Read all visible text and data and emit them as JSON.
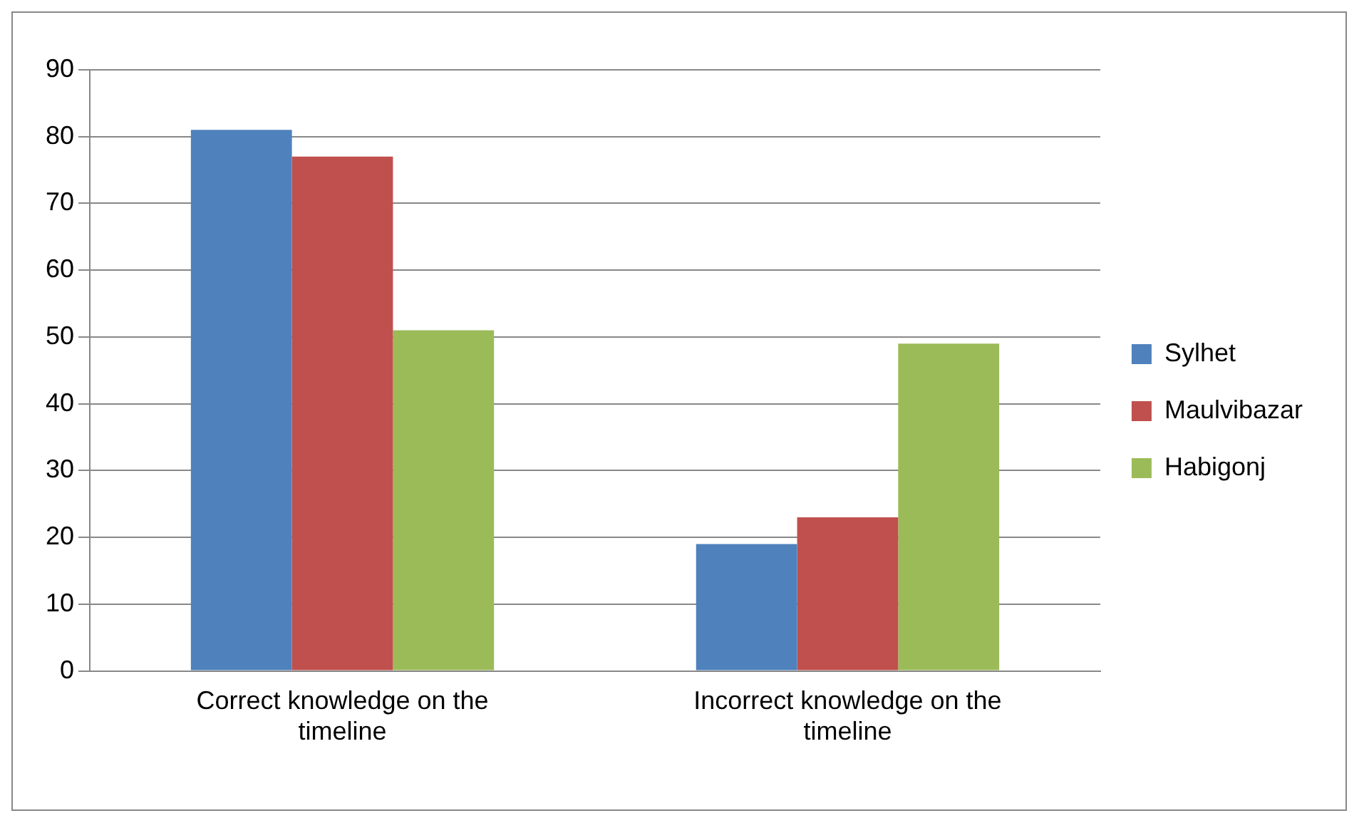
{
  "chart_data": {
    "type": "bar",
    "categories": [
      "Correct knowledge on the timeline",
      "Incorrect knowledge on the timeline"
    ],
    "series": [
      {
        "name": "Sylhet",
        "color": "#4f81bd",
        "values": [
          81,
          19
        ]
      },
      {
        "name": "Maulvibazar",
        "color": "#c0504d",
        "values": [
          77,
          23
        ]
      },
      {
        "name": "Habigonj",
        "color": "#9bbb59",
        "values": [
          51,
          49
        ]
      }
    ],
    "ylim": [
      0,
      90
    ],
    "yticks": [
      0,
      10,
      20,
      30,
      40,
      50,
      60,
      70,
      80,
      90
    ],
    "grid": "y",
    "legend": "right"
  }
}
